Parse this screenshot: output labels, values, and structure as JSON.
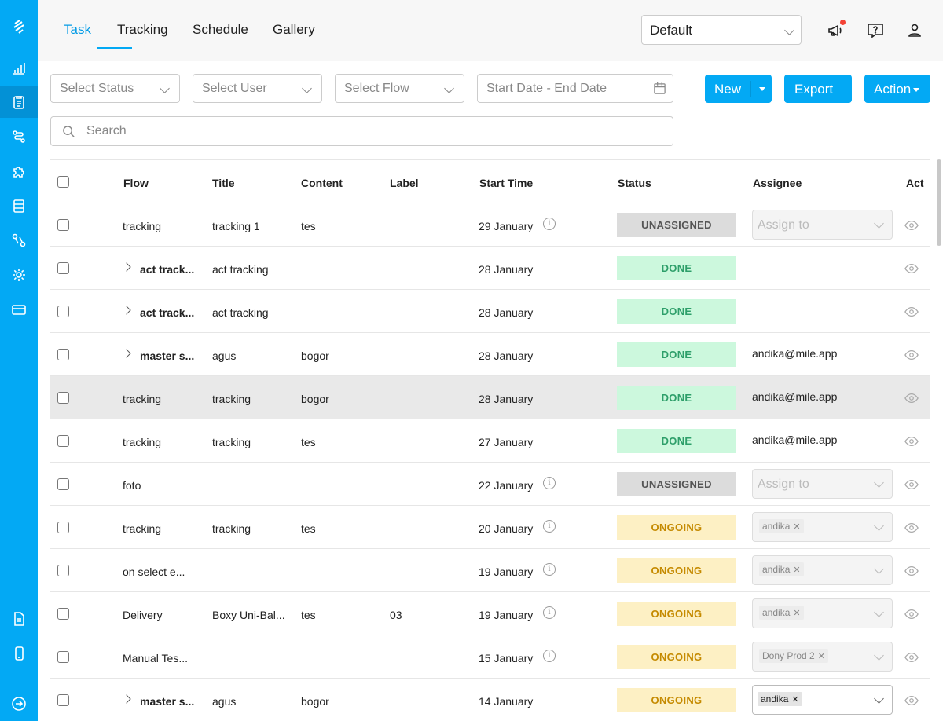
{
  "sidebar": {
    "items": [
      {
        "icon": "logo-icon"
      },
      {
        "icon": "chart-icon"
      },
      {
        "icon": "clipboard-icon",
        "active": true
      },
      {
        "icon": "flow-icon"
      },
      {
        "icon": "puzzle-icon"
      },
      {
        "icon": "document-icon"
      },
      {
        "icon": "route-icon"
      },
      {
        "icon": "gear-icon"
      },
      {
        "icon": "card-icon"
      },
      {
        "icon": "file-text-icon"
      },
      {
        "icon": "mobile-icon"
      },
      {
        "icon": "logout-icon"
      }
    ]
  },
  "tabs": [
    {
      "label": "Task",
      "active": true
    },
    {
      "label": "Tracking"
    },
    {
      "label": "Schedule"
    },
    {
      "label": "Gallery"
    }
  ],
  "view_select": {
    "value": "Default"
  },
  "filters": {
    "status_placeholder": "Select Status",
    "user_placeholder": "Select User",
    "flow_placeholder": "Select Flow",
    "date_placeholder": "Start Date - End Date"
  },
  "buttons": {
    "new": "New",
    "export": "Export",
    "action": "Action"
  },
  "search": {
    "placeholder": "Search"
  },
  "table": {
    "headers": {
      "flow": "Flow",
      "title": "Title",
      "content": "Content",
      "label": "Label",
      "start_time": "Start Time",
      "status": "Status",
      "assignee": "Assignee",
      "action": "Act"
    },
    "rows": [
      {
        "flow": "tracking",
        "title": "tracking 1",
        "content": "tes",
        "label": "",
        "start": "29 January",
        "status": "UNASSIGNED",
        "assign_placeholder": "Assign to"
      },
      {
        "flow": "act track...",
        "title": "act tracking",
        "content": "",
        "label": "",
        "start": "28 January",
        "status": "DONE"
      },
      {
        "flow": "act track...",
        "title": "act tracking",
        "content": "",
        "label": "",
        "start": "28 January",
        "status": "DONE"
      },
      {
        "flow": "master s...",
        "title": "agus",
        "content": "bogor",
        "label": "",
        "start": "28 January",
        "status": "DONE",
        "assignee": "andika@mile.app"
      },
      {
        "flow": "tracking",
        "title": "tracking",
        "content": "bogor",
        "label": "",
        "start": "28 January",
        "status": "DONE",
        "assignee": "andika@mile.app"
      },
      {
        "flow": "tracking",
        "title": "tracking",
        "content": "tes",
        "label": "",
        "start": "27 January",
        "status": "DONE",
        "assignee": "andika@mile.app"
      },
      {
        "flow": "foto",
        "title": "",
        "content": "",
        "label": "",
        "start": "22 January",
        "status": "UNASSIGNED",
        "assign_placeholder": "Assign to"
      },
      {
        "flow": "tracking",
        "title": "tracking",
        "content": "tes",
        "label": "",
        "start": "20 January",
        "status": "ONGOING",
        "chip": "andika"
      },
      {
        "flow": "on select e...",
        "title": "",
        "content": "",
        "label": "",
        "start": "19 January",
        "status": "ONGOING",
        "chip": "andika"
      },
      {
        "flow": "Delivery",
        "title": "Boxy Uni-Bal...",
        "content": "tes",
        "label": "03",
        "start": "19 January",
        "status": "ONGOING",
        "chip": "andika"
      },
      {
        "flow": "Manual Tes...",
        "title": "",
        "content": "",
        "label": "",
        "start": "15 January",
        "status": "ONGOING",
        "chip": "Dony Prod 2"
      },
      {
        "flow": "master s...",
        "title": "agus",
        "content": "bogor",
        "label": "",
        "start": "14 January",
        "status": "ONGOING",
        "chip": "andika"
      }
    ]
  },
  "colors": {
    "accent": "#03a9f4",
    "done": "#ccf8dd",
    "ongoing": "#fdf0c4",
    "unassigned": "#dcdcdc"
  }
}
